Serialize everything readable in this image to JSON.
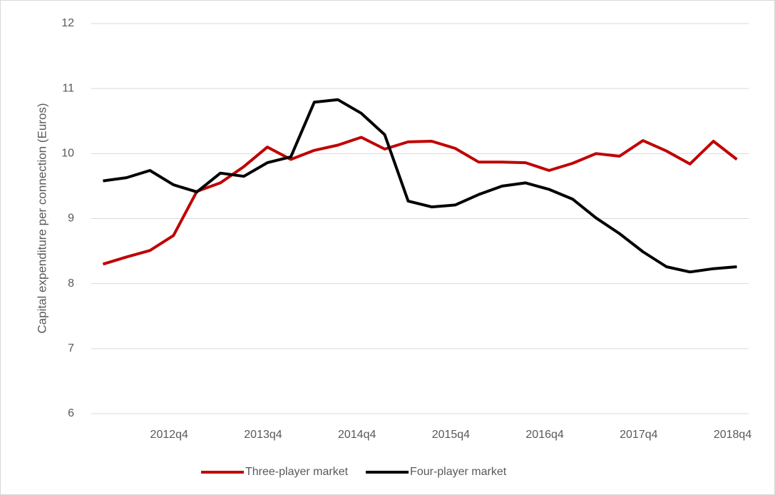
{
  "chart_data": {
    "type": "line",
    "ylabel": "Capital expenditure per connection (Euros)",
    "categories": [
      null,
      null,
      null,
      "2012q4",
      null,
      null,
      null,
      "2013q4",
      null,
      null,
      null,
      "2014q4",
      null,
      null,
      null,
      "2015q4",
      null,
      null,
      null,
      "2016q4",
      null,
      null,
      null,
      "2017q4",
      null,
      null,
      null,
      "2018q4"
    ],
    "series": [
      {
        "name": "Three-player market",
        "color": "#c00000",
        "values": [
          8.3,
          8.41,
          8.51,
          8.74,
          9.42,
          9.55,
          9.8,
          10.1,
          9.91,
          10.05,
          10.13,
          10.25,
          10.07,
          10.18,
          10.19,
          10.08,
          9.87,
          9.87,
          9.86,
          9.74,
          9.85,
          10.0,
          9.96,
          10.2,
          10.04,
          9.84,
          10.19,
          9.91
        ]
      },
      {
        "name": "Four-player market",
        "color": "#000000",
        "values": [
          9.58,
          9.63,
          9.74,
          9.52,
          9.41,
          9.7,
          9.65,
          9.86,
          9.95,
          10.79,
          10.83,
          10.62,
          10.29,
          9.27,
          9.18,
          9.21,
          9.37,
          9.5,
          9.55,
          9.45,
          9.3,
          9.01,
          8.77,
          8.49,
          8.26,
          8.18,
          8.23,
          8.26
        ]
      }
    ],
    "ylim": [
      6,
      12
    ],
    "yticks": [
      6,
      7,
      8,
      9,
      10,
      11,
      12
    ],
    "grid": true,
    "legend": "bottom"
  }
}
